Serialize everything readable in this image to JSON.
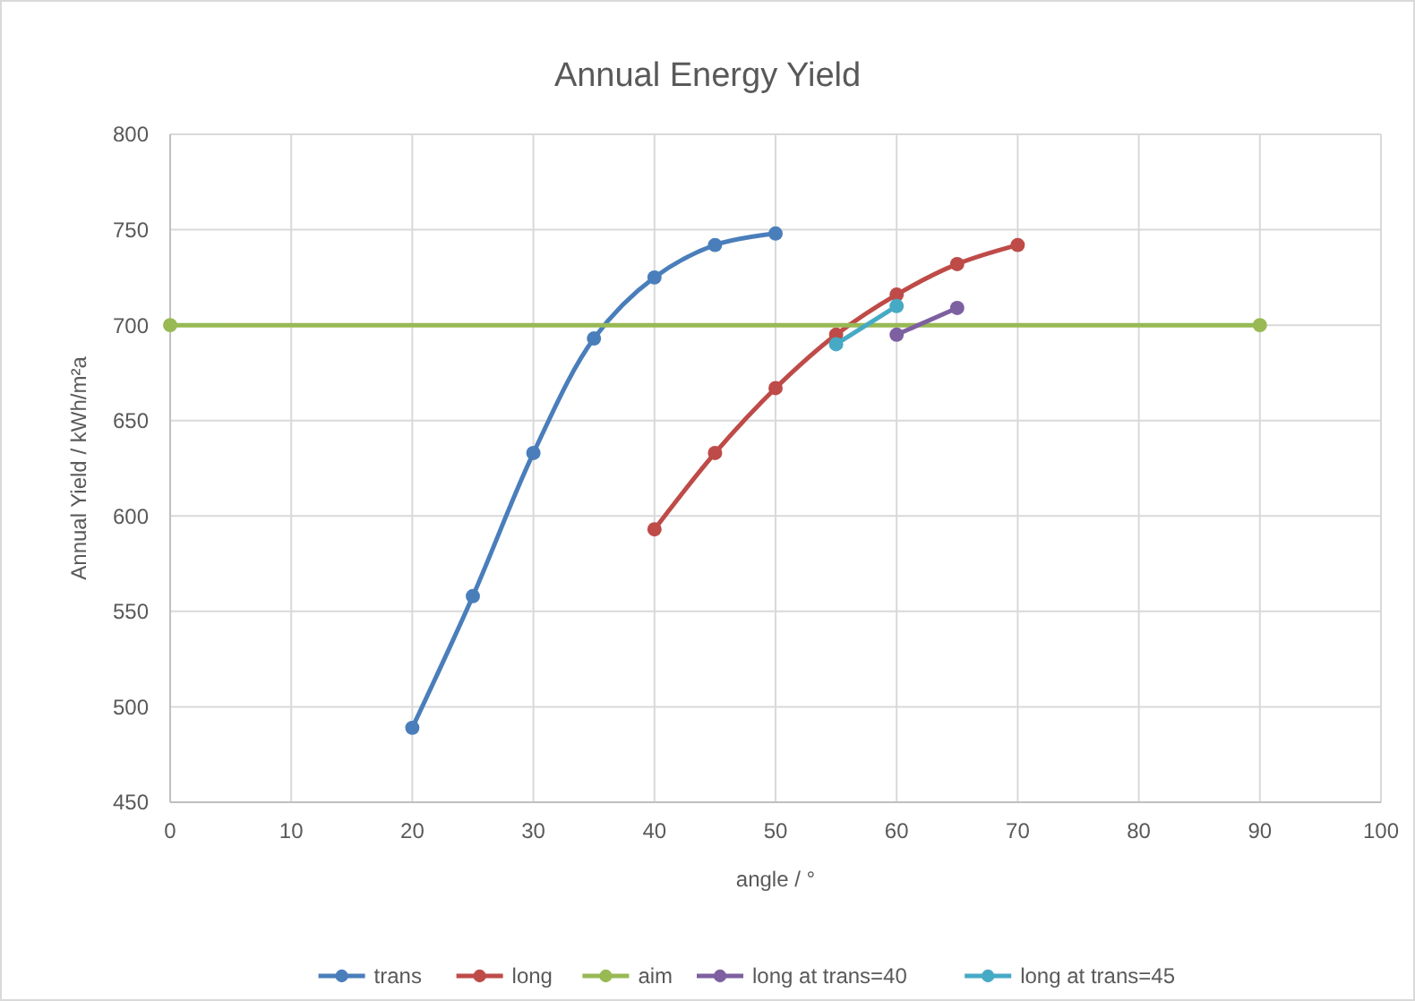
{
  "chart_data": {
    "type": "line",
    "title": "Annual Energy Yield",
    "xlabel": "angle / °",
    "ylabel": "Annual Yield / kWh/m²a",
    "xlim": [
      0,
      100
    ],
    "xticks": [
      0,
      10,
      20,
      30,
      40,
      50,
      60,
      70,
      80,
      90,
      100
    ],
    "ylim": [
      450,
      800
    ],
    "yticks": [
      450,
      500,
      550,
      600,
      650,
      700,
      750,
      800
    ],
    "grid": true,
    "legend": "bottom",
    "marker": "circle",
    "line_style": "solid",
    "series": [
      {
        "name": "trans",
        "color": "#4a7ebb",
        "x": [
          20,
          25,
          30,
          35,
          40,
          45,
          50
        ],
        "values": [
          489,
          558,
          633,
          693,
          725,
          742,
          748
        ]
      },
      {
        "name": "long",
        "color": "#be4b48",
        "x": [
          40,
          45,
          50,
          55,
          60,
          65,
          70
        ],
        "values": [
          593,
          633,
          667,
          695,
          716,
          732,
          742
        ]
      },
      {
        "name": "aim",
        "color": "#98b954",
        "x": [
          0,
          90
        ],
        "values": [
          700,
          700
        ]
      },
      {
        "name": "long at trans=40",
        "color": "#7d60a0",
        "x": [
          60,
          65
        ],
        "values": [
          695,
          709
        ]
      },
      {
        "name": "long at trans=45",
        "color": "#46aac5",
        "x": [
          55,
          60
        ],
        "values": [
          690,
          710
        ]
      }
    ]
  }
}
